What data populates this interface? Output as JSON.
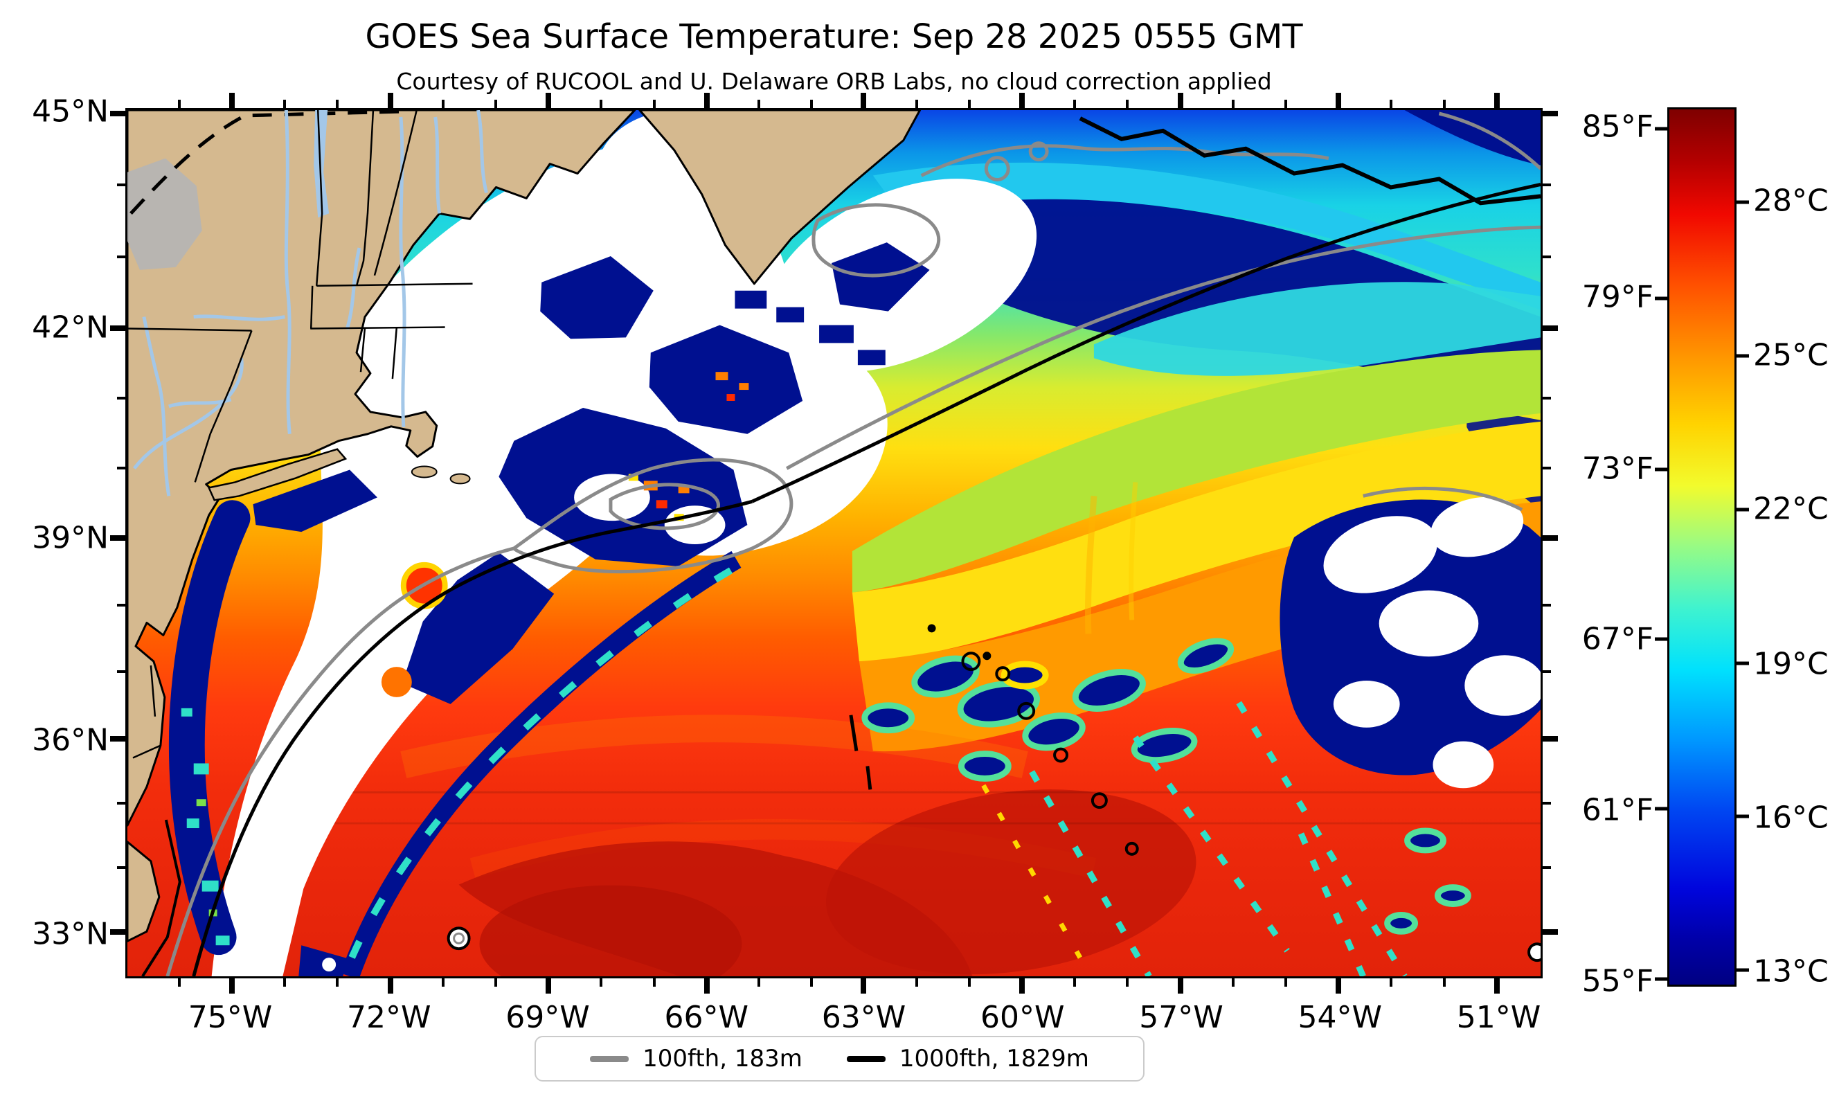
{
  "figure": {
    "title": "GOES Sea Surface Temperature: Sep 28 2025 0555 GMT",
    "subtitle": "Courtesy of RUCOOL and U. Delaware ORB Labs, no cloud correction applied"
  },
  "map": {
    "lat_ticks": [
      {
        "label": "45°N",
        "f": 0.004
      },
      {
        "label": "42°N",
        "f": 0.252
      },
      {
        "label": "39°N",
        "f": 0.494
      },
      {
        "label": "36°N",
        "f": 0.726
      },
      {
        "label": "33°N",
        "f": 0.949
      }
    ],
    "lon_ticks": [
      {
        "label": "75°W",
        "f": 0.074
      },
      {
        "label": "72°W",
        "f": 0.186
      },
      {
        "label": "69°W",
        "f": 0.298
      },
      {
        "label": "66°W",
        "f": 0.41
      },
      {
        "label": "63°W",
        "f": 0.521
      },
      {
        "label": "60°W",
        "f": 0.633
      },
      {
        "label": "57°W",
        "f": 0.745
      },
      {
        "label": "54°W",
        "f": 0.857
      },
      {
        "label": "51°W",
        "f": 0.969
      }
    ],
    "extent": {
      "lon_west": 77.0,
      "lon_east": 50.2,
      "lat_south": 32.3,
      "lat_north": 45.0
    }
  },
  "colorbar": {
    "fahrenheit_ticks": [
      {
        "label": "85°F",
        "f": 0.022
      },
      {
        "label": "79°F",
        "f": 0.216
      },
      {
        "label": "73°F",
        "f": 0.411
      },
      {
        "label": "67°F",
        "f": 0.605
      },
      {
        "label": "61°F",
        "f": 0.799
      },
      {
        "label": "55°F",
        "f": 0.994
      }
    ],
    "celsius_ticks": [
      {
        "label": "28°C",
        "f": 0.106
      },
      {
        "label": "25°C",
        "f": 0.282
      },
      {
        "label": "22°C",
        "f": 0.457
      },
      {
        "label": "19°C",
        "f": 0.633
      },
      {
        "label": "16°C",
        "f": 0.808
      },
      {
        "label": "13°C",
        "f": 0.983
      }
    ],
    "colormap": "jet",
    "gradient": [
      {
        "o": 0.0,
        "c": "#7f0000"
      },
      {
        "o": 0.06,
        "c": "#b40000"
      },
      {
        "o": 0.12,
        "c": "#f10800"
      },
      {
        "o": 0.2,
        "c": "#ff5000"
      },
      {
        "o": 0.28,
        "c": "#ff9400"
      },
      {
        "o": 0.36,
        "c": "#ffd300"
      },
      {
        "o": 0.43,
        "c": "#f2fb2d"
      },
      {
        "o": 0.5,
        "c": "#97fb85"
      },
      {
        "o": 0.57,
        "c": "#3ff3cf"
      },
      {
        "o": 0.64,
        "c": "#00e1fd"
      },
      {
        "o": 0.72,
        "c": "#0098ff"
      },
      {
        "o": 0.8,
        "c": "#0047f2"
      },
      {
        "o": 0.89,
        "c": "#0005dd"
      },
      {
        "o": 0.95,
        "c": "#0000a7"
      },
      {
        "o": 1.0,
        "c": "#000082"
      }
    ]
  },
  "legend": {
    "items": [
      {
        "label": "100fth, 183m",
        "color": "#8a8a8a"
      },
      {
        "label": "1000fth, 1829m",
        "color": "#000000"
      }
    ]
  },
  "colors": {
    "palette": {
      "land": "#d5b98f",
      "cloud": "#ffffff",
      "navy": "#001090",
      "cyan2": "#2fe0c8",
      "river": "#a3c7e8",
      "grayblob": "#b5b5b5",
      "c100": "#8a8a8a",
      "c1000": "#000000",
      "darkred": "#bd1406"
    },
    "ocean_gradient": [
      {
        "o": 0.0,
        "c": "#0a46e6"
      },
      {
        "o": 0.05,
        "c": "#0b96e8"
      },
      {
        "o": 0.11,
        "c": "#19d2e6"
      },
      {
        "o": 0.19,
        "c": "#2fe0cc"
      },
      {
        "o": 0.26,
        "c": "#86e86a"
      },
      {
        "o": 0.32,
        "c": "#d8ec30"
      },
      {
        "o": 0.39,
        "c": "#ffdf10"
      },
      {
        "o": 0.47,
        "c": "#ffb200"
      },
      {
        "o": 0.54,
        "c": "#ff8a00"
      },
      {
        "o": 0.61,
        "c": "#ff5c00"
      },
      {
        "o": 0.69,
        "c": "#ff3a0e"
      },
      {
        "o": 0.78,
        "c": "#f32d0c"
      },
      {
        "o": 0.88,
        "c": "#ea270b"
      },
      {
        "o": 1.0,
        "c": "#e2230a"
      }
    ]
  },
  "chart_data": {
    "type": "heatmap",
    "title": "GOES Sea Surface Temperature: Sep 28 2025 0555 GMT",
    "x_axis": {
      "label_units": "degrees West",
      "ticks": [
        75,
        72,
        69,
        66,
        63,
        60,
        57,
        54,
        51
      ],
      "range_W": [
        77.0,
        50.2
      ]
    },
    "y_axis": {
      "label_units": "degrees North",
      "ticks": [
        45,
        42,
        39,
        36,
        33
      ],
      "range_N": [
        32.3,
        45.0
      ]
    },
    "colorbar_scale": {
      "fahrenheit": [
        85,
        79,
        73,
        67,
        61,
        55
      ],
      "celsius": [
        28,
        25,
        22,
        19,
        16,
        13
      ],
      "colormap": "jet",
      "warm_at_top": true
    },
    "contour_legend": [
      {
        "name": "100fth, 183m",
        "color": "gray"
      },
      {
        "name": "1000fth, 1829m",
        "color": "black"
      }
    ],
    "qualitative_features": "Tan land (New England / mid-Atlantic, Nova Scotia) upper left; white cloud mask over Gulf of Maine and shelf; cold navy/cyan shelf water in NE quadrant; warm 26-29C Gulf Stream / Sargasso water (red, dark-red) across the south; gray 100-fathom and black 1000-fathom isobaths"
  }
}
